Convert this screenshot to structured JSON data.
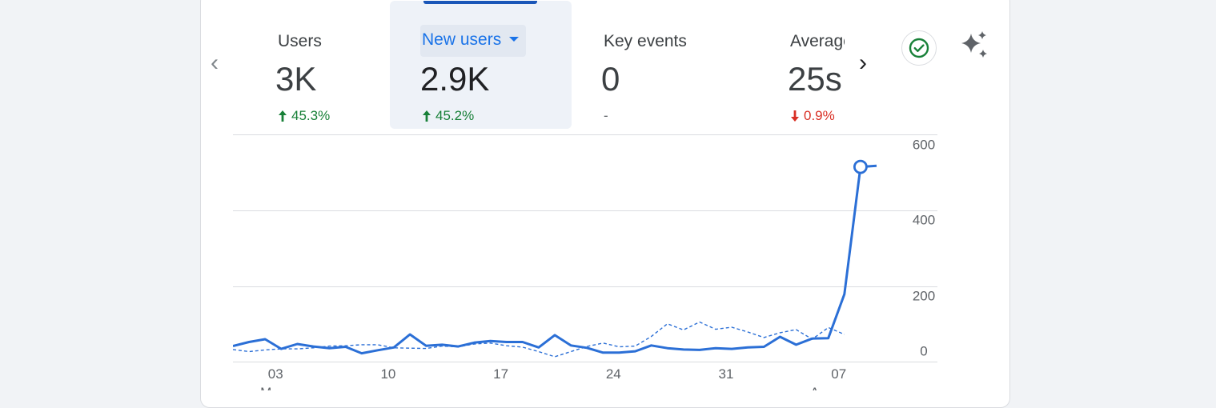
{
  "metrics": [
    {
      "label": "Users",
      "value": "3K",
      "change": "45.3%",
      "direction": "up"
    },
    {
      "label": "New users",
      "value": "2.9K",
      "change": "45.2%",
      "direction": "up",
      "selected": true
    },
    {
      "label": "Key events",
      "value": "0",
      "change": "-",
      "direction": "none"
    },
    {
      "label": "Average engagement time",
      "value": "25s",
      "change": "0.9%",
      "direction": "down"
    }
  ],
  "icons": {
    "prev": "chevron-left-icon",
    "next": "chevron-right-icon",
    "verified": "check-circle-icon",
    "insights": "sparkle-icon"
  },
  "colors": {
    "accent": "#1a73e8",
    "up": "#188038",
    "down": "#d93025",
    "line": "#2b6fd6",
    "selected_bg": "#eef2f8"
  },
  "chart_data": {
    "type": "line",
    "x_tick_labels": [
      "03",
      "10",
      "17",
      "24",
      "31",
      "07"
    ],
    "x_tick_sublabels": [
      "M",
      "A"
    ],
    "y_tick_labels": [
      "600",
      "400",
      "200",
      "0"
    ],
    "ylim": [
      0,
      600
    ],
    "y_axis_position": "right",
    "grid": true,
    "series": [
      {
        "style": "solid",
        "values": [
          16,
          28,
          36,
          8,
          22,
          15,
          10,
          14,
          -5,
          4,
          12,
          50,
          17,
          20,
          15,
          26,
          31,
          28,
          28,
          12,
          48,
          18,
          11,
          -3,
          -3,
          1,
          18,
          10,
          6,
          5,
          10,
          8,
          12,
          14,
          43,
          20,
          38,
          39,
          167,
          537,
          540
        ],
        "marker": {
          "index": 39,
          "value": 537
        }
      },
      {
        "style": "dashed",
        "values": [
          6,
          0,
          5,
          8,
          8,
          11,
          16,
          17,
          20,
          20,
          11,
          10,
          9,
          16,
          14,
          22,
          25,
          17,
          13,
          0,
          -15,
          0,
          15,
          25,
          14,
          16,
          44,
          81,
          63,
          86,
          65,
          71,
          57,
          41,
          55,
          64,
          36,
          70,
          50
        ]
      }
    ]
  }
}
